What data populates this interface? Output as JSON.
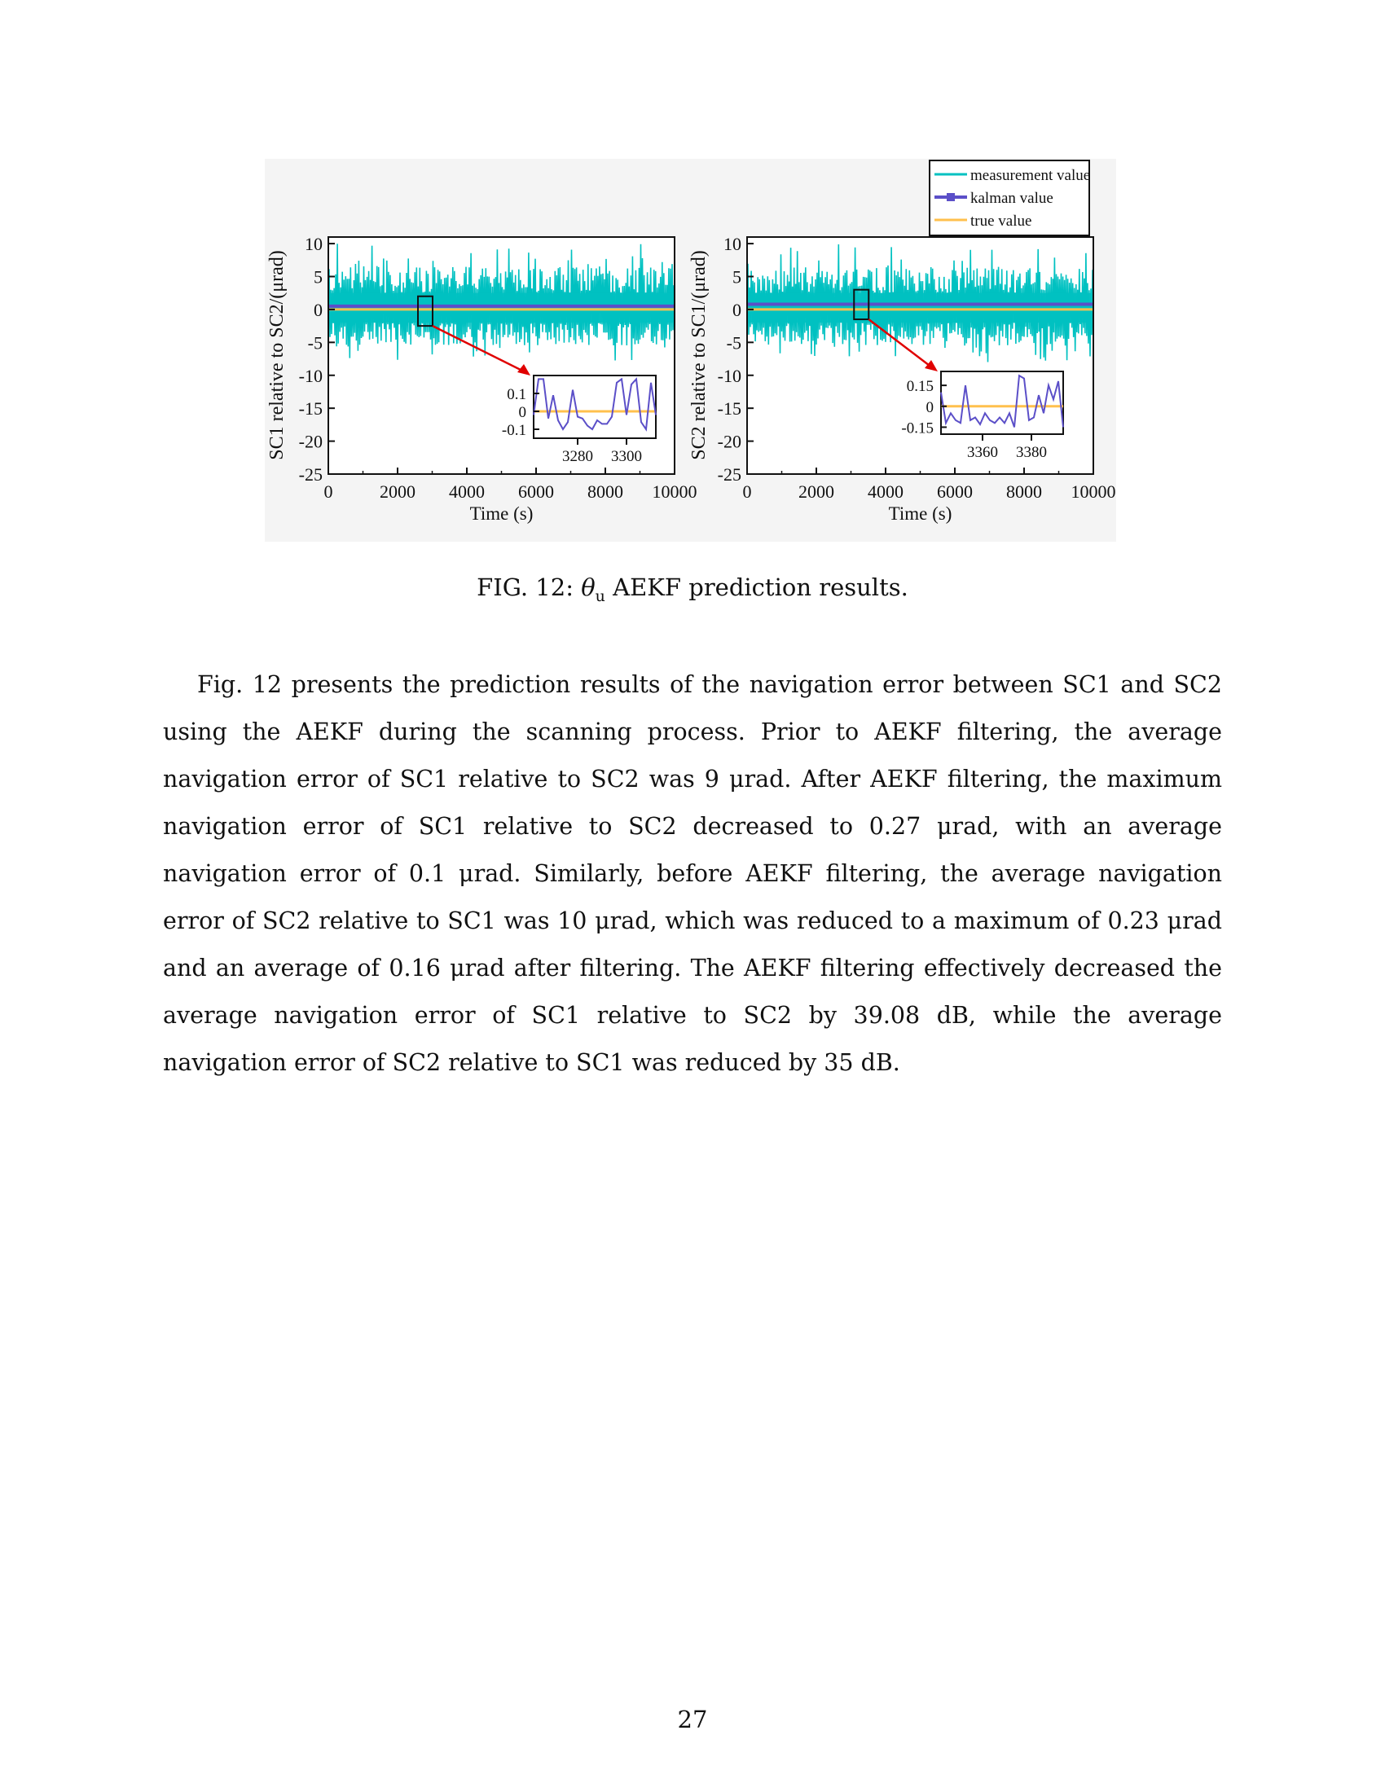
{
  "chart_data": [
    {
      "type": "line",
      "xlabel": "Time (s)",
      "ylabel": "SC1 relative to SC2/(μrad)",
      "xlim": [
        0,
        10000
      ],
      "ylim": [
        -25,
        11
      ],
      "x_ticks": [
        "0",
        "2000",
        "4000",
        "6000",
        "8000",
        "10000"
      ],
      "y_ticks": [
        "10",
        "5",
        "0",
        "-5",
        "-10",
        "-15",
        "-20",
        "-25"
      ],
      "series": [
        {
          "name": "measurement value",
          "color": "#00c1c1",
          "approx_range": [
            -8,
            10
          ]
        },
        {
          "name": "kalman value",
          "color": "#5b4fc8",
          "approx_value": 0.5
        },
        {
          "name": "true value",
          "color": "#ffc04d",
          "approx_value": 0
        }
      ],
      "inset": {
        "x_ticks": [
          "3280",
          "3300"
        ],
        "y_ticks": [
          "0.1",
          "0",
          "-0.1"
        ],
        "xlim": [
          3262,
          3312
        ],
        "ylim": [
          -0.15,
          0.2
        ],
        "kalman_x": [
          3262,
          3264,
          3266,
          3268,
          3270,
          3272,
          3274,
          3276,
          3278,
          3280,
          3282,
          3284,
          3286,
          3288,
          3290,
          3292,
          3294,
          3296,
          3298,
          3300,
          3302,
          3304,
          3306,
          3308,
          3310,
          3312
        ],
        "kalman_values": [
          -0.02,
          0.18,
          0.18,
          -0.04,
          0.09,
          -0.05,
          -0.1,
          -0.06,
          0.12,
          -0.03,
          -0.04,
          -0.08,
          -0.1,
          -0.05,
          -0.07,
          -0.07,
          -0.03,
          0.16,
          0.18,
          -0.02,
          0.15,
          0.18,
          -0.06,
          -0.1,
          0.16,
          -0.02
        ],
        "true_value": 0
      }
    },
    {
      "type": "line",
      "xlabel": "Time (s)",
      "ylabel": "SC2 relative to SC1/(μrad)",
      "xlim": [
        0,
        10000
      ],
      "ylim": [
        -25,
        11
      ],
      "x_ticks": [
        "0",
        "2000",
        "4000",
        "6000",
        "8000",
        "10000"
      ],
      "y_ticks": [
        "10",
        "5",
        "0",
        "-5",
        "-10",
        "-15",
        "-20",
        "-25"
      ],
      "legend_position": "top-right",
      "legend": [
        "measurement value",
        "kalman value",
        "true value"
      ],
      "series": [
        {
          "name": "measurement value",
          "color": "#00c1c1",
          "approx_range": [
            -8,
            10
          ]
        },
        {
          "name": "kalman value",
          "color": "#5b4fc8",
          "approx_value": 0.8
        },
        {
          "name": "true value",
          "color": "#ffc04d",
          "approx_value": 0
        }
      ],
      "inset": {
        "x_ticks": [
          "3360",
          "3380"
        ],
        "y_ticks": [
          "0.15",
          "0",
          "-0.15"
        ],
        "xlim": [
          3343,
          3393
        ],
        "ylim": [
          -0.2,
          0.25
        ],
        "kalman_x": [
          3343,
          3345,
          3347,
          3349,
          3351,
          3353,
          3355,
          3357,
          3359,
          3361,
          3363,
          3365,
          3367,
          3369,
          3371,
          3373,
          3375,
          3377,
          3379,
          3381,
          3383,
          3385,
          3387,
          3389,
          3391,
          3393
        ],
        "kalman_values": [
          0.1,
          -0.12,
          -0.05,
          -0.1,
          -0.12,
          0.15,
          -0.1,
          -0.08,
          -0.13,
          -0.05,
          -0.1,
          -0.12,
          -0.08,
          -0.12,
          -0.05,
          -0.15,
          0.22,
          0.2,
          -0.1,
          -0.08,
          0.08,
          -0.05,
          0.15,
          0.05,
          0.18,
          -0.15
        ],
        "true_value": 0
      }
    }
  ],
  "caption": {
    "prefix": "FIG. 12: ",
    "symbol": "θ",
    "subscript": "u",
    "suffix": " AEKF prediction results."
  },
  "paragraph": "Fig. 12 presents the prediction results of the navigation error between SC1 and SC2 using the AEKF during the scanning process. Prior to AEKF filtering, the average navigation error of SC1 relative to SC2 was 9 μrad. After AEKF filtering, the maximum navigation error of SC1 relative to SC2 decreased to 0.27 μrad, with an average navigation error of 0.1 μrad. Similarly, before AEKF filtering, the average navigation error of SC2 relative to SC1 was 10 μrad, which was reduced to a maximum of 0.23 μrad and an average of 0.16 μrad after filtering. The AEKF filtering effectively decreased the average navigation error of SC1 relative to SC2 by 39.08 dB, while the average navigation error of SC2 relative to SC1 was reduced by 35 dB.",
  "page_number": "27"
}
